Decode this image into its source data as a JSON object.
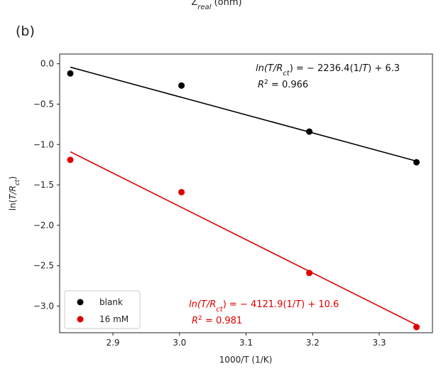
{
  "top_label": "Z",
  "top_label_sub": "real",
  "top_label_tail": " (ohm)",
  "panel_label": "(b)",
  "chart_data": {
    "type": "scatter",
    "xlabel": "1000/T (1/K)",
    "ylabel_prefix": "ln(",
    "ylabel_italic": "T/R",
    "ylabel_sub": "ct",
    "ylabel_suffix": ")",
    "xlim": [
      2.82,
      3.38
    ],
    "ylim": [
      -3.33,
      0.12
    ],
    "xticks": [
      "2.9",
      "3.0",
      "3.1",
      "3.2",
      "3.3"
    ],
    "xtick_values": [
      2.9,
      3.0,
      3.1,
      3.2,
      3.3
    ],
    "yticks": [
      "0.0",
      "−0.5",
      "−1.0",
      "−1.5",
      "−2.0",
      "−2.5",
      "−3.0"
    ],
    "ytick_values": [
      0.0,
      -0.5,
      -1.0,
      -1.5,
      -2.0,
      -2.5,
      -3.0
    ],
    "grid": false,
    "legend_position": "bottom-left",
    "series": [
      {
        "name": "blank",
        "color": "#000000",
        "x": [
          2.836,
          3.003,
          3.195,
          3.356
        ],
        "y": [
          -0.12,
          -0.27,
          -0.84,
          -1.22
        ],
        "fit": {
          "slope": -2.2364,
          "intercept": 6.3
        },
        "equation": {
          "lhs_italic": "ln(T/R",
          "lhs_sub": "ct",
          "lhs_tail": ") = − 2236.4(1/",
          "rhs_italic": "T",
          "rhs_tail": ") + 6.3"
        },
        "r2": {
          "prefix": "R",
          "sup": "2",
          "value": " = 0.966"
        }
      },
      {
        "name": "16 mM",
        "color": "#e00000",
        "x": [
          2.836,
          3.003,
          3.195,
          3.356
        ],
        "y": [
          -1.19,
          -1.59,
          -2.59,
          -3.26
        ],
        "fit": {
          "slope": -4.1219,
          "intercept": 10.6
        },
        "equation": {
          "lhs_italic": "ln(T/R",
          "lhs_sub": "ct",
          "lhs_tail": ") = − 4121.9(1/",
          "rhs_italic": "T",
          "rhs_tail": ") + 10.6"
        },
        "r2": {
          "prefix": "R",
          "sup": "2",
          "value": " = 0.981"
        }
      }
    ]
  }
}
